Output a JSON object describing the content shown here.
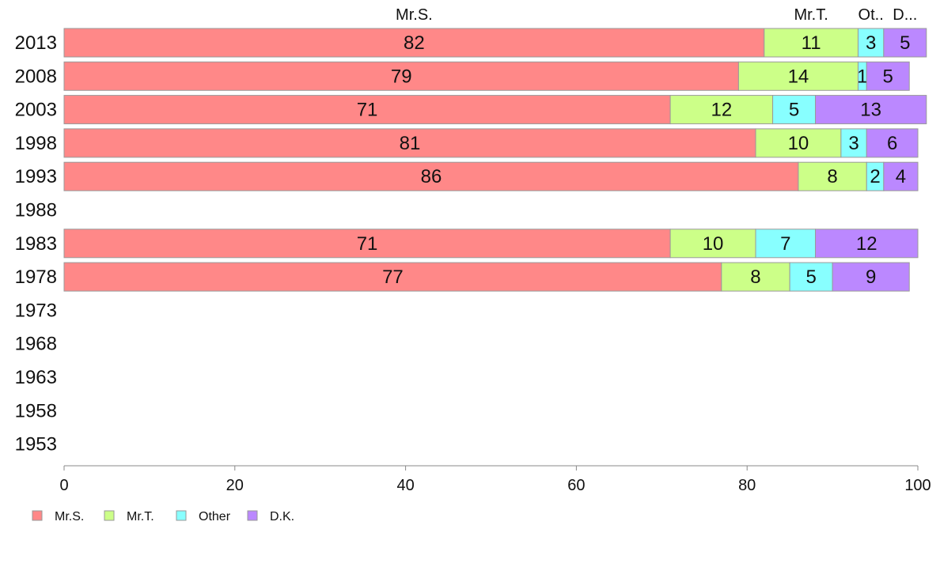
{
  "chart_data": {
    "type": "bar",
    "orientation": "horizontal",
    "stacked": true,
    "title": "",
    "xlabel": "",
    "ylabel": "",
    "xlim": [
      0,
      100
    ],
    "x_ticks": [
      0,
      20,
      40,
      60,
      80,
      100
    ],
    "grid": false,
    "legend_position": "bottom-left",
    "categories": [
      "2013",
      "2008",
      "2003",
      "1998",
      "1993",
      "1988",
      "1983",
      "1978",
      "1973",
      "1968",
      "1963",
      "1958",
      "1953"
    ],
    "series": [
      {
        "name": "Mr.S.",
        "short_label": "Mr.S.",
        "color": "#ff8888",
        "values": [
          82,
          79,
          71,
          81,
          86,
          null,
          71,
          77,
          null,
          null,
          null,
          null,
          null
        ]
      },
      {
        "name": "Mr.T.",
        "short_label": "Mr.T.",
        "color": "#ccff88",
        "values": [
          11,
          14,
          12,
          10,
          8,
          null,
          10,
          8,
          null,
          null,
          null,
          null,
          null
        ]
      },
      {
        "name": "Other",
        "short_label": "Ot..",
        "color": "#88ffff",
        "values": [
          3,
          1,
          5,
          3,
          2,
          null,
          7,
          5,
          null,
          null,
          null,
          null,
          null
        ]
      },
      {
        "name": "D.K.",
        "short_label": "D...",
        "color": "#bb88ff",
        "values": [
          5,
          5,
          13,
          6,
          4,
          null,
          12,
          9,
          null,
          null,
          null,
          null,
          null
        ]
      }
    ]
  }
}
